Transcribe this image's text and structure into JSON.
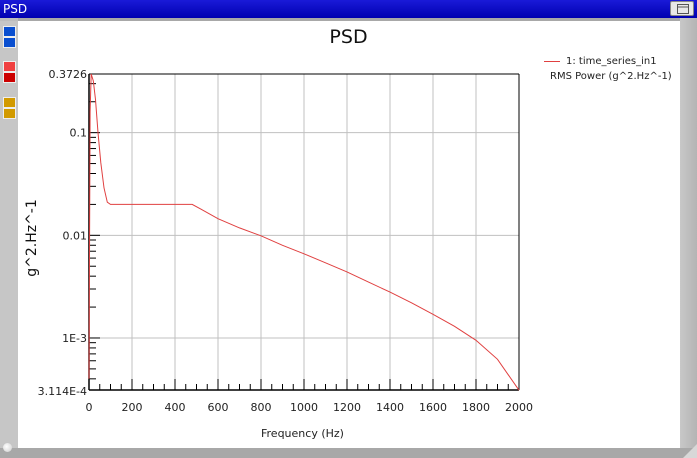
{
  "window": {
    "title": "PSD",
    "restore_button": "restore-icon"
  },
  "toolstrip": {
    "swatches": [
      {
        "color": "#0a4fd0",
        "y": 26
      },
      {
        "color": "#0a4fd0",
        "y": 37
      },
      {
        "color": "#f04040",
        "y": 61
      },
      {
        "color": "#cc0000",
        "y": 72
      },
      {
        "color": "#d29a00",
        "y": 97
      },
      {
        "color": "#d29a00",
        "y": 108
      }
    ]
  },
  "chart_data": {
    "type": "line",
    "title": "PSD",
    "xlabel": "Frequency (Hz)",
    "ylabel": "g^2.Hz^-1",
    "xlim": [
      0,
      2000
    ],
    "ylim": [
      0.0003114,
      0.3726
    ],
    "yscale": "log",
    "grid": true,
    "x_ticks": [
      "0",
      "200",
      "400",
      "600",
      "800",
      "1000",
      "1200",
      "1400",
      "1600",
      "1800",
      "2000"
    ],
    "y_ticks": [
      "0.3726",
      "0.1",
      "0.01",
      "1E-3",
      "3.114E-4"
    ],
    "legend": {
      "position": "top-right",
      "entries": [
        {
          "label": "1: time_series_in1",
          "color": "#e04040"
        }
      ],
      "subtitle": "RMS Power (g^2.Hz^-1)"
    },
    "series": [
      {
        "name": "1: time_series_in1",
        "color": "#e04040",
        "x": [
          0,
          5,
          10,
          20,
          30,
          42,
          55,
          70,
          85,
          100,
          120,
          200,
          300,
          400,
          480,
          520,
          600,
          700,
          800,
          900,
          1000,
          1100,
          1200,
          1300,
          1400,
          1500,
          1600,
          1700,
          1800,
          1900,
          2000
        ],
        "y": [
          0.0004,
          0.16,
          0.3726,
          0.32,
          0.21,
          0.1,
          0.051,
          0.029,
          0.021,
          0.02,
          0.02,
          0.02,
          0.02,
          0.02,
          0.02,
          0.018,
          0.0145,
          0.0118,
          0.0099,
          0.008,
          0.0066,
          0.0054,
          0.0044,
          0.0035,
          0.0028,
          0.0022,
          0.0017,
          0.0013,
          0.00095,
          0.00062,
          0.00031
        ]
      }
    ]
  }
}
